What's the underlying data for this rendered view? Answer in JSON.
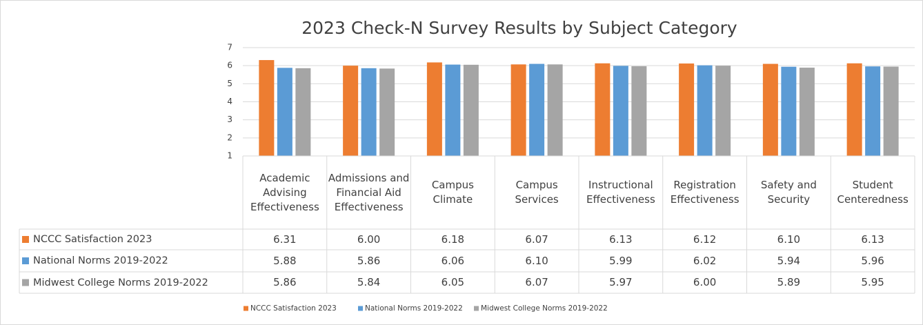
{
  "chart_data": {
    "type": "bar",
    "title": "2023 Check-N Survey Results by Subject Category",
    "categories": [
      "Academic Advising Effectiveness",
      "Admissions and Financial Aid Effectiveness",
      "Campus Climate",
      "Campus Services",
      "Instructional Effectiveness",
      "Registration Effectiveness",
      "Safety and Security",
      "Student Centeredness"
    ],
    "series": [
      {
        "name": "NCCC Satisfaction 2023",
        "color": "#ed7d31",
        "values": [
          6.31,
          6.0,
          6.18,
          6.07,
          6.13,
          6.12,
          6.1,
          6.13
        ],
        "value_labels": [
          "6.31",
          "6.00",
          "6.18",
          "6.07",
          "6.13",
          "6.12",
          "6.10",
          "6.13"
        ]
      },
      {
        "name": "National Norms 2019-2022",
        "color": "#5b9bd5",
        "values": [
          5.88,
          5.86,
          6.06,
          6.1,
          5.99,
          6.02,
          5.94,
          5.96
        ],
        "value_labels": [
          "5.88",
          "5.86",
          "6.06",
          "6.10",
          "5.99",
          "6.02",
          "5.94",
          "5.96"
        ]
      },
      {
        "name": "Midwest College Norms 2019-2022",
        "color": "#a5a5a5",
        "values": [
          5.86,
          5.84,
          6.05,
          6.07,
          5.97,
          6.0,
          5.89,
          5.95
        ],
        "value_labels": [
          "5.86",
          "5.84",
          "6.05",
          "6.07",
          "5.97",
          "6.00",
          "5.89",
          "5.95"
        ]
      }
    ],
    "ylim": [
      1,
      7
    ],
    "yticks": [
      1,
      2,
      3,
      4,
      5,
      6,
      7
    ],
    "grid": true,
    "legend": "bottom",
    "data_table": true
  }
}
